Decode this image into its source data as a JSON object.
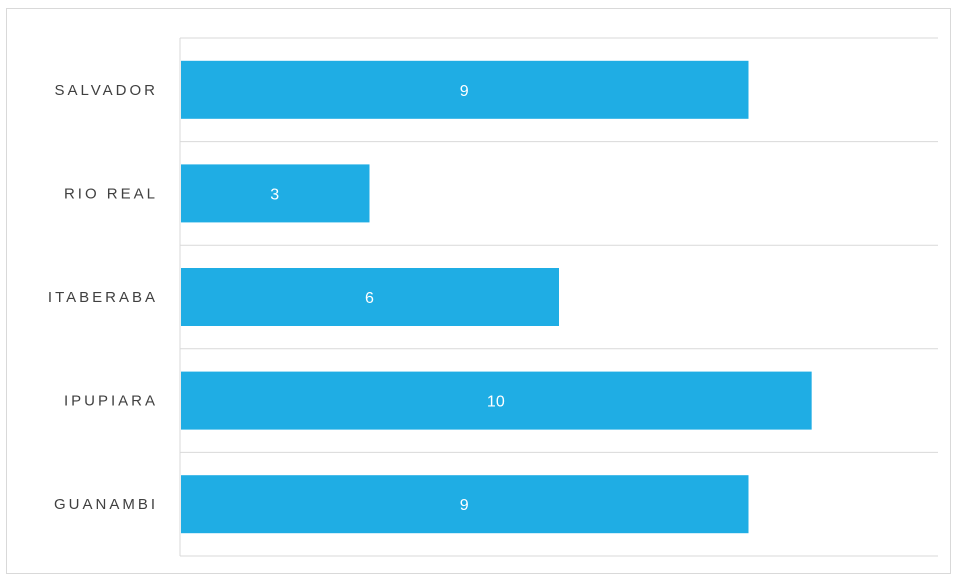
{
  "chart_data": {
    "type": "bar",
    "orientation": "horizontal",
    "categories": [
      "SALVADOR",
      "RIO REAL",
      "ITABERABA",
      "IPUPIARA",
      "GUANAMBI"
    ],
    "values": [
      9,
      3,
      6,
      10,
      9
    ],
    "title": "",
    "xlabel": "",
    "ylabel": "",
    "xlim": [
      0,
      12
    ],
    "grid": true,
    "legend": "none",
    "data_labels": true,
    "bar_color": "#1fadE4"
  }
}
